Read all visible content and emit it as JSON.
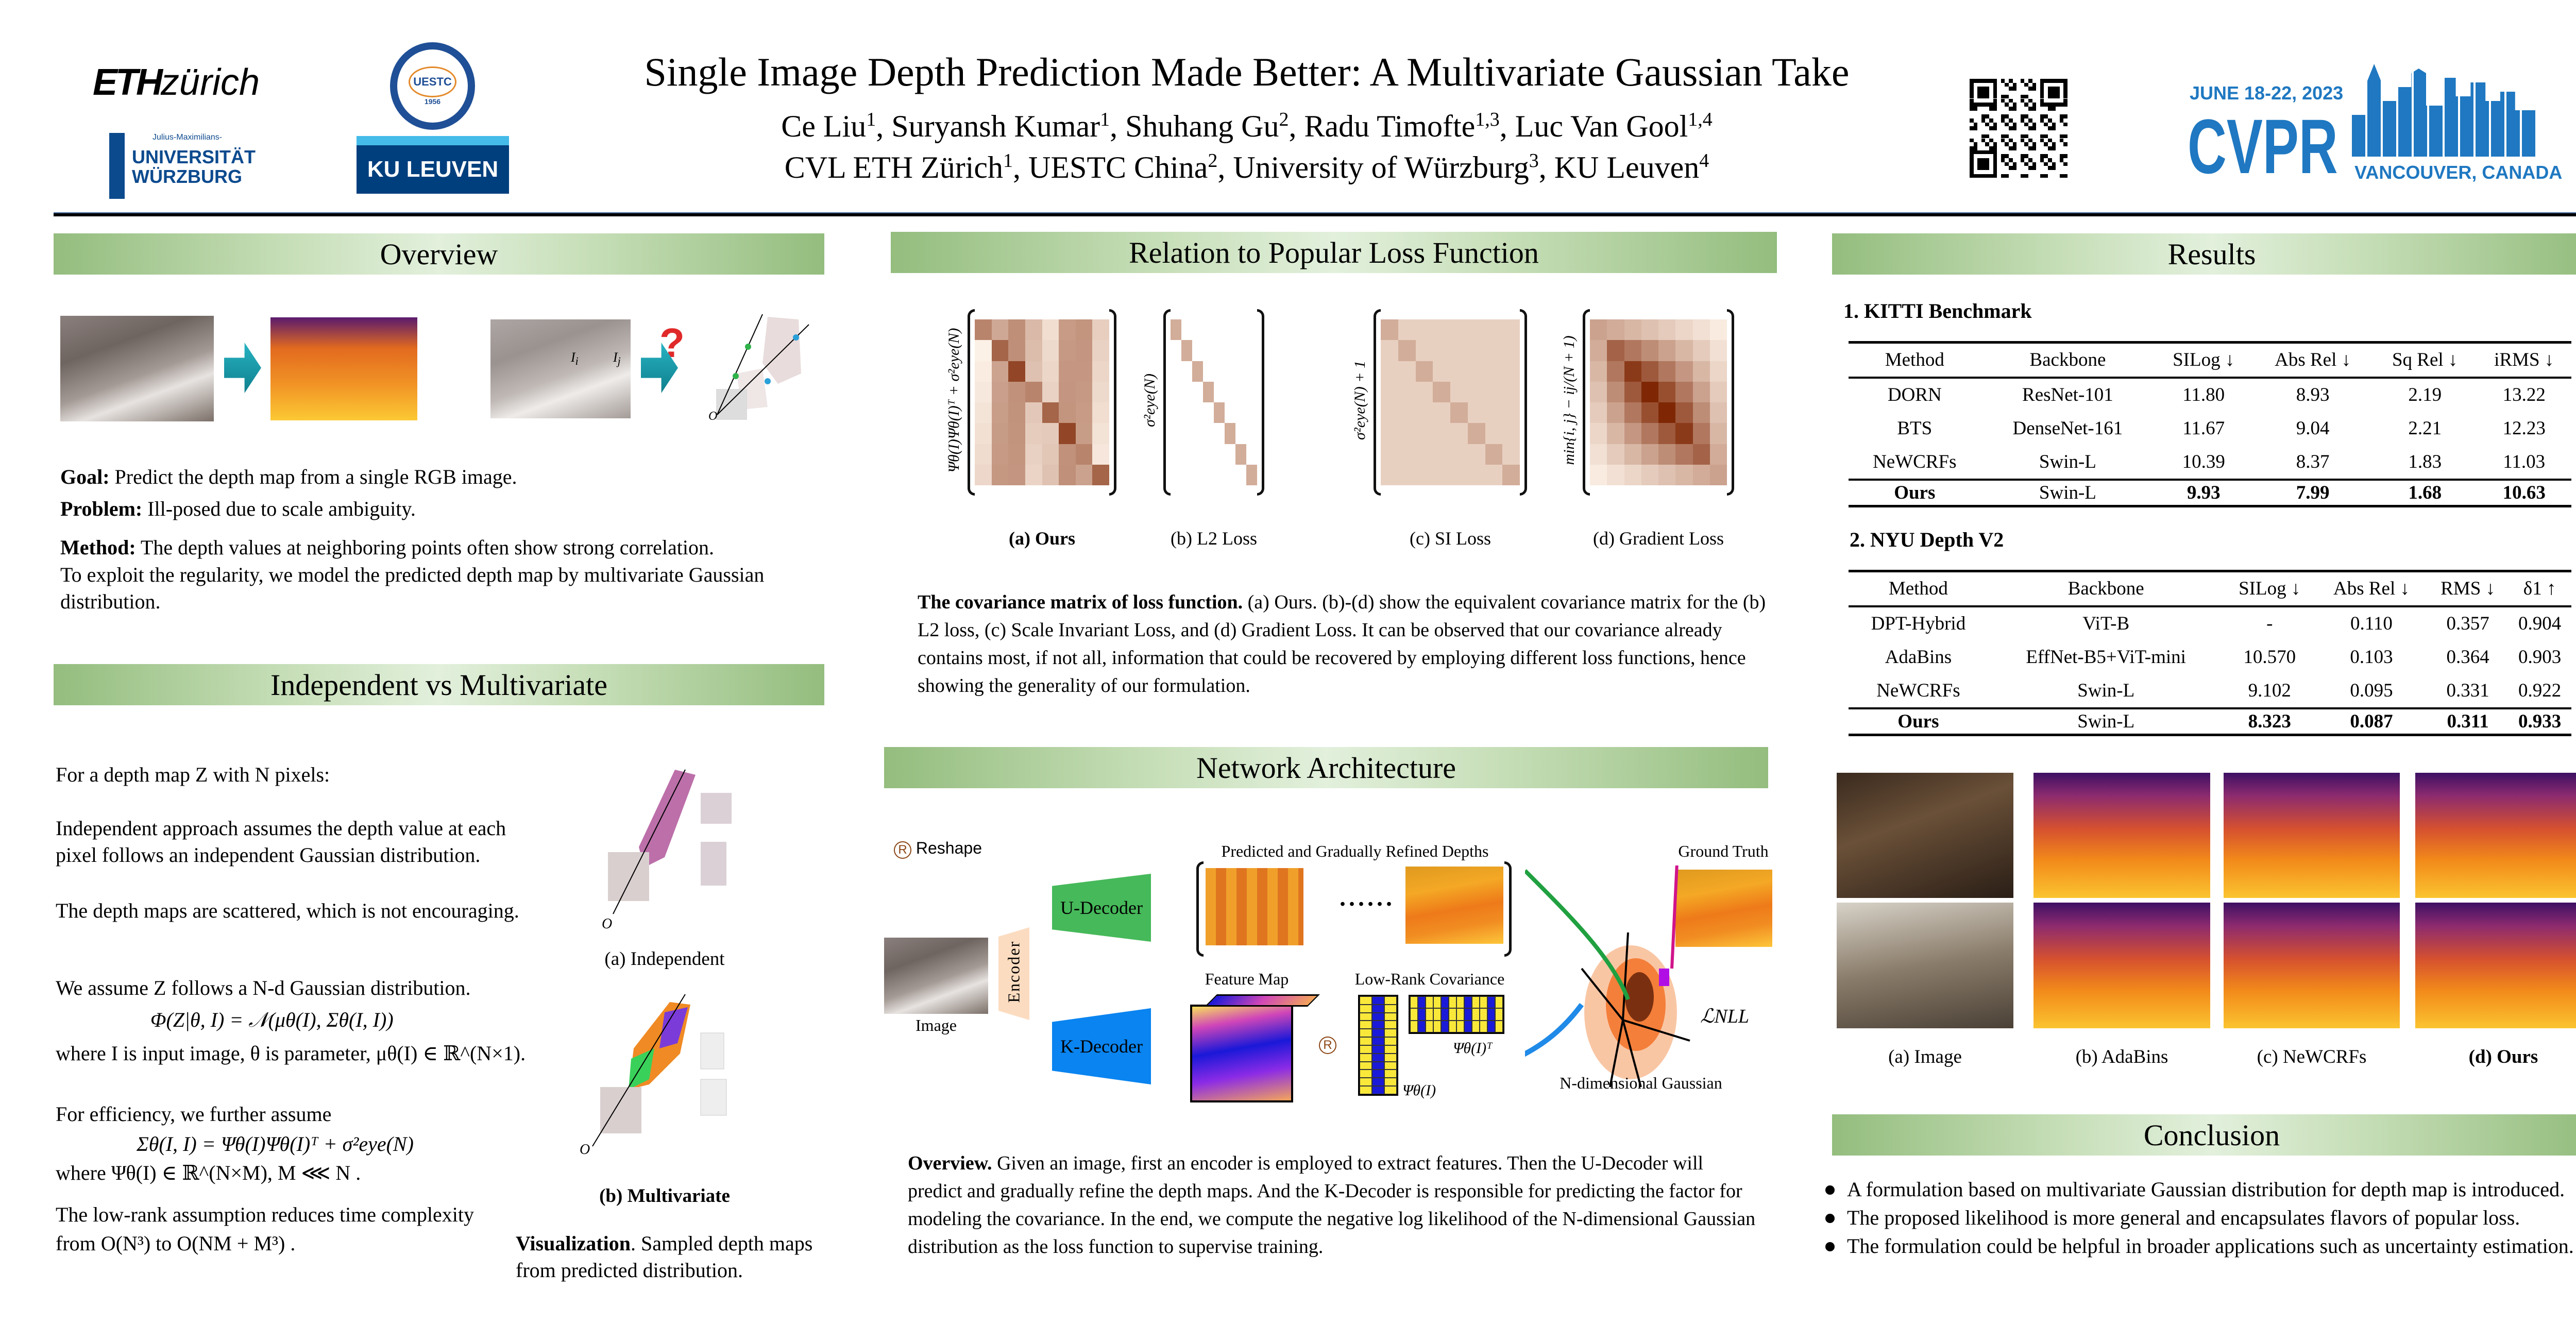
{
  "header": {
    "title": "Single Image Depth Prediction Made Better: A Multivariate Gaussian Take",
    "authors": [
      {
        "name": "Ce Liu",
        "aff": "1"
      },
      {
        "name": "Suryansh Kumar",
        "aff": "1"
      },
      {
        "name": "Shuhang Gu",
        "aff": "2"
      },
      {
        "name": "Radu Timofte",
        "aff": "1,3"
      },
      {
        "name": "Luc Van Gool",
        "aff": "1,4"
      }
    ],
    "affiliations": [
      {
        "name": "CVL ETH Zürich",
        "aff": "1"
      },
      {
        "name": "UESTC China",
        "aff": "2"
      },
      {
        "name": "University of Würzburg",
        "aff": "3"
      },
      {
        "name": "KU Leuven",
        "aff": "4"
      }
    ],
    "logos": {
      "eth_bold": "ETH",
      "eth_light": "zürich",
      "uestc": "UESTC",
      "uestc_year": "1956",
      "wurzburg_small": "Julius-Maximilians-",
      "wurzburg_1": "UNIVERSITÄT",
      "wurzburg_2": "WÜRZBURG",
      "kuleuven": "KU LEUVEN",
      "cvpr_date": "JUNE 18-22, 2023",
      "cvpr": "CVPR",
      "cvpr_location": "VANCOUVER, CANADA"
    }
  },
  "overview": {
    "title": "Overview",
    "labels": {
      "ii": "I",
      "ii_sub": "i",
      "ij": "I",
      "ij_sub": "j",
      "origin": "O",
      "question": "?"
    },
    "goal_label": "Goal:",
    "goal": " Predict the depth map from a single RGB image.",
    "problem_label": "Problem:",
    "problem": " Ill-posed due to scale ambiguity.",
    "method_label": "Method:",
    "method_1": " The depth values at neighboring points often show strong correlation.",
    "method_2": "To exploit the regularity, we model the predicted depth map by multivariate Gaussian distribution."
  },
  "independent": {
    "title": "Independent vs Multivariate",
    "p1": "For a depth map Z with N pixels:",
    "p2": "Independent approach assumes the depth value at each pixel follows an independent Gaussian distribution.",
    "p3": "The depth maps are scattered, which is not encouraging.",
    "p4": "We assume Z follows a N-d Gaussian distribution.",
    "eq1": "Φ(Z|θ, I) = 𝒩(μθ(I), Σθ(I, I))",
    "p5": "where I is input image,  θ is parameter,  μθ(I) ∈ ℝ^(N×1).",
    "p6": "For efficiency, we further assume",
    "eq2": "Σθ(I, I) = Ψθ(I)Ψθ(I)ᵀ + σ²eye(N)",
    "p7": "where  Ψθ(I) ∈ ℝ^(N×M), M ⋘ N .",
    "p8": "The low-rank assumption reduces time complexity",
    "p9": "from  O(N³) to O(NM + M³) .",
    "fig_a": "(a) Independent",
    "fig_b": "(b) Multivariate",
    "origin": "O",
    "vis_label": "Visualization",
    "vis_text": ". Sampled depth maps from predicted distribution."
  },
  "relation": {
    "title": "Relation to Popular Loss Function",
    "matrices": [
      {
        "label": "Ψθ(I)Ψθ(I)ᵀ + σ²eye(N)",
        "caption": "(a) Ours"
      },
      {
        "label": "σ²eye(N)",
        "caption": "(b) L2 Loss"
      },
      {
        "label": "σ²eye(N) + 1",
        "caption": "(c) SI Loss"
      },
      {
        "label": "min{i, j} − ij/(N + 1)",
        "caption": "(d) Gradient Loss"
      }
    ],
    "caption_label": "The covariance matrix of loss function.",
    "caption_text": " (a) Ours. (b)-(d) show the equivalent covariance matrix for the (b) L2 loss, (c) Scale Invariant Loss, and (d) Gradient Loss. It can be observed that our covariance already contains most, if not all, information that could be recovered by employing different loss functions, hence showing the generality of our formulation."
  },
  "network": {
    "title": "Network Architecture",
    "reshape_symbol": "R",
    "reshape": "Reshape",
    "image": "Image",
    "encoder": "Encoder",
    "u_decoder": "U-Decoder",
    "k_decoder": "K-Decoder",
    "predicted": "Predicted and Gradually Refined Depths",
    "dots": "......",
    "ground_truth": "Ground Truth",
    "feature_map": "Feature Map",
    "low_rank": "Low-Rank Covariance",
    "psi": "Ψθ(I)",
    "psi_t": "Ψθ(I)ᵀ",
    "loss": "ℒNLL",
    "gaussian": "N-dimensional Gaussian",
    "caption_label": "Overview.",
    "caption_text": " Given an image, first an encoder is employed to extract features. Then the U-Decoder will predict and gradually refine the depth maps. And the K-Decoder is responsible for predicting the factor for modeling the covariance. In the end, we compute the negative log likelihood of the N-dimensional Gaussian distribution as the loss function to supervise training."
  },
  "results": {
    "title": "Results",
    "kitti": {
      "title": "1. KITTI Benchmark",
      "headers": [
        "Method",
        "Backbone",
        "SILog ↓",
        "Abs Rel ↓",
        "Sq Rel ↓",
        "iRMS ↓"
      ],
      "rows": [
        [
          "DORN",
          "ResNet-101",
          "11.80",
          "8.93",
          "2.19",
          "13.22"
        ],
        [
          "BTS",
          "DenseNet-161",
          "11.67",
          "9.04",
          "2.21",
          "12.23"
        ],
        [
          "NeWCRFs",
          "Swin-L",
          "10.39",
          "8.37",
          "1.83",
          "11.03"
        ]
      ],
      "ours": [
        "Ours",
        "Swin-L",
        "9.93",
        "7.99",
        "1.68",
        "10.63"
      ]
    },
    "nyu": {
      "title": "2. NYU Depth V2",
      "headers": [
        "Method",
        "Backbone",
        "SILog ↓",
        "Abs Rel ↓",
        "RMS ↓",
        "δ1 ↑"
      ],
      "rows": [
        [
          "DPT-Hybrid",
          "ViT-B",
          "-",
          "0.110",
          "0.357",
          "0.904"
        ],
        [
          "AdaBins",
          "EffNet-B5+ViT-mini",
          "10.570",
          "0.103",
          "0.364",
          "0.903"
        ],
        [
          "NeWCRFs",
          "Swin-L",
          "9.102",
          "0.095",
          "0.331",
          "0.922"
        ]
      ],
      "ours": [
        "Ours",
        "Swin-L",
        "8.323",
        "0.087",
        "0.311",
        "0.933"
      ]
    },
    "captions": [
      "(a) Image",
      "(b) AdaBins",
      "(c) NeWCRFs",
      "(d) Ours"
    ]
  },
  "conclusion": {
    "title": "Conclusion",
    "bullets": [
      "A formulation based on multivariate Gaussian distribution for depth map is introduced.",
      "The proposed likelihood is more general and encapsulates flavors of popular loss.",
      "The formulation could be helpful in broader applications such as uncertainty estimation."
    ]
  },
  "colors": {
    "band": "#94bd7e",
    "cvpr_blue": "#1f78c1",
    "u_decoder": "#46b95a",
    "k_decoder": "#0a84f0",
    "eth_navy": "#1f407a"
  }
}
